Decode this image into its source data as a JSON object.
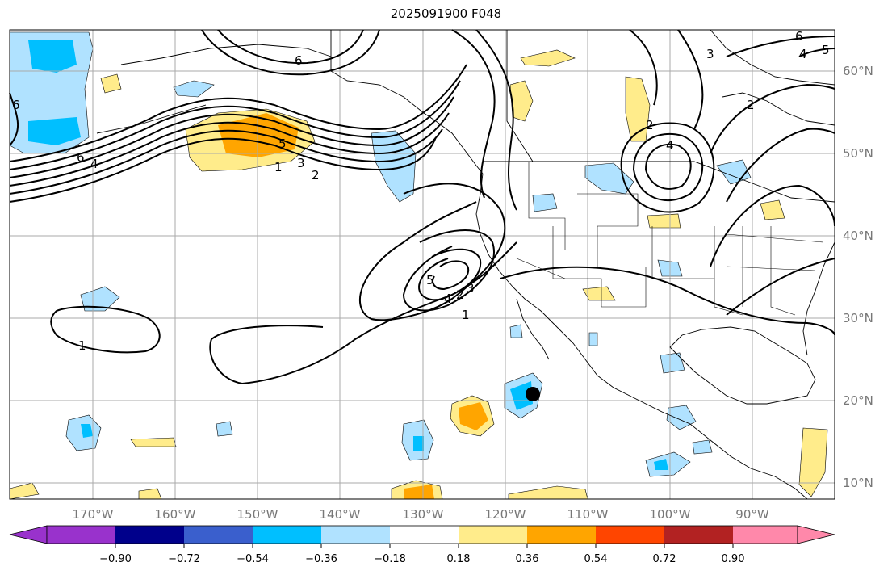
{
  "title": "2025091900 F048",
  "map": {
    "lon_range": [
      -180,
      -80
    ],
    "lat_range": [
      8,
      65
    ],
    "lon_ticks": [
      "170°W",
      "160°W",
      "150°W",
      "140°W",
      "130°W",
      "120°W",
      "110°W",
      "100°W",
      "90°W"
    ],
    "lat_ticks": [
      "10°N",
      "20°N",
      "30°N",
      "40°N",
      "50°N",
      "60°N"
    ],
    "grid": true,
    "marker": {
      "lon": -116.5,
      "lat": 20.7,
      "label": ""
    }
  },
  "colorbar": {
    "ticks": [
      "−0.90",
      "−0.72",
      "−0.54",
      "−0.36",
      "−0.18",
      "0.18",
      "0.36",
      "0.54",
      "0.72",
      "0.90"
    ],
    "colors": [
      "#9932cc",
      "#00008b",
      "#3a5fcd",
      "#00bfff",
      "#b0e2ff",
      "#ffffff",
      "#ffec8b",
      "#ffa500",
      "#ff4500",
      "#b22222",
      "#ff88aa"
    ],
    "extend": "both"
  },
  "contour_labels": [
    "1",
    "2",
    "3",
    "4",
    "5",
    "6"
  ],
  "colors": {
    "grid": "#aaaaaa",
    "contour": "#000000",
    "coast": "#000000"
  }
}
